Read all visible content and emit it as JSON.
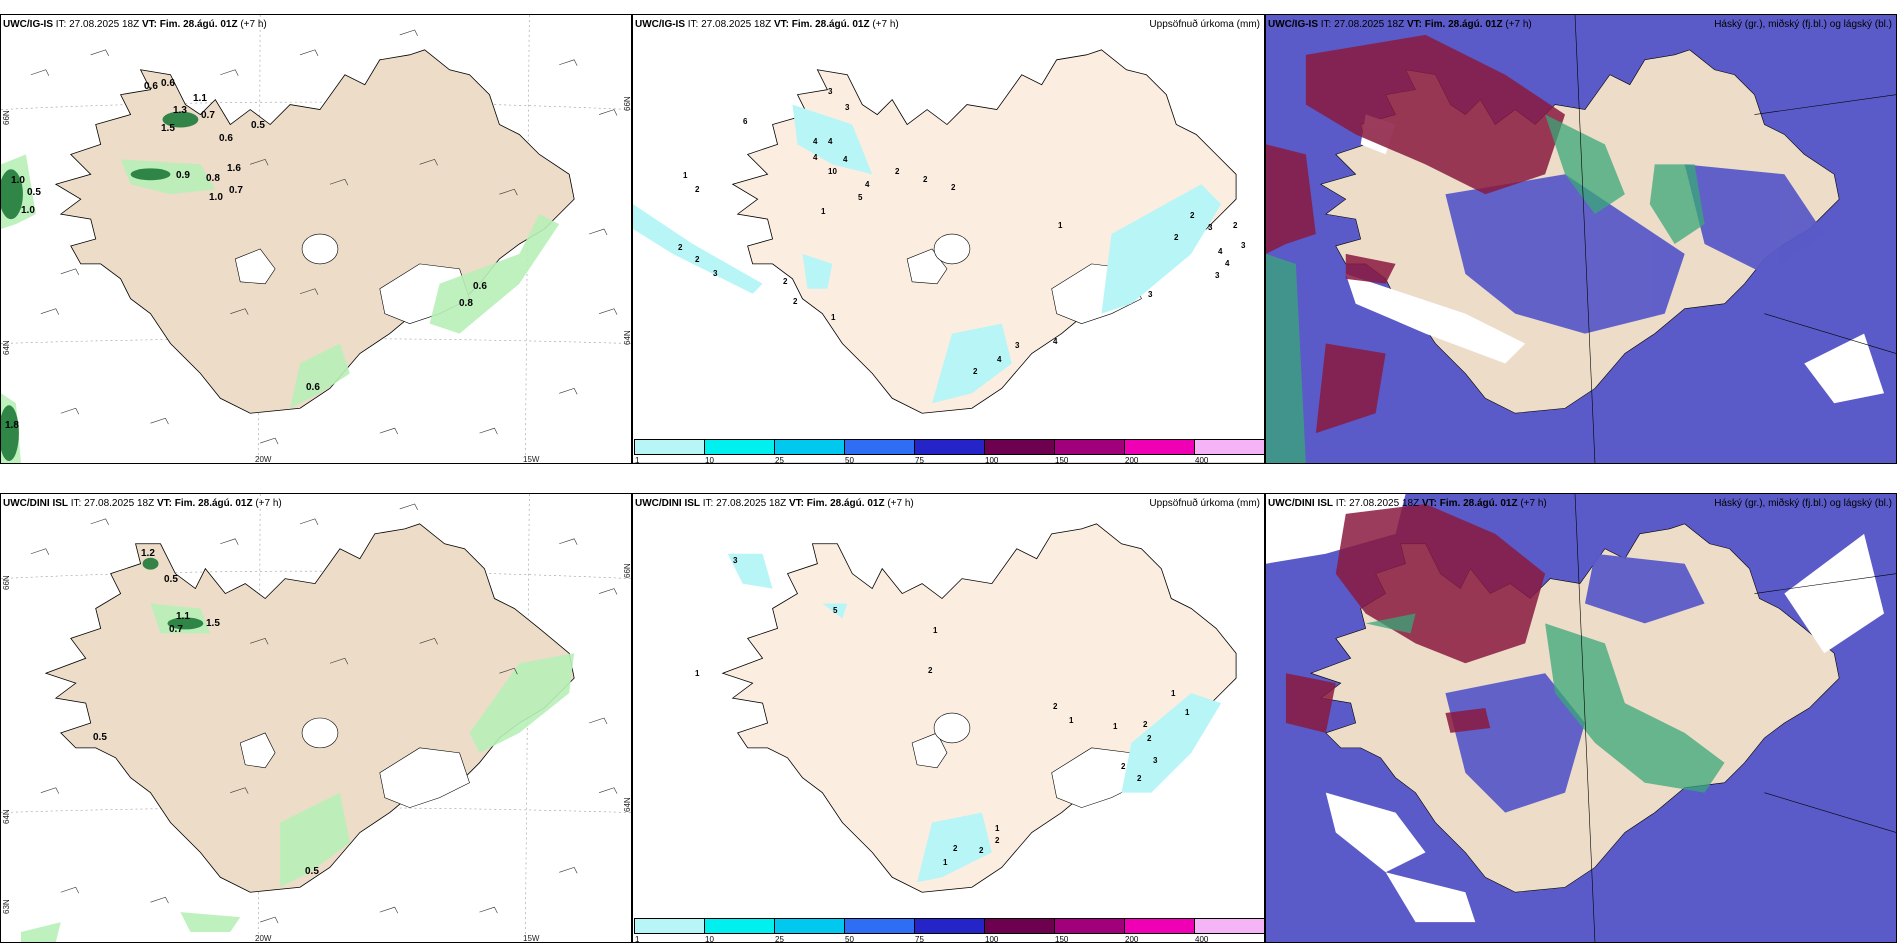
{
  "panels": [
    {
      "title_model": "UWC/IG-IS",
      "title_it": "IT: 27.08.2025 18Z",
      "title_vt": "VT: Fim. 28.ágú. 01Z",
      "title_lead": "(+7 h)",
      "right_title": ""
    },
    {
      "title_model": "UWC/IG-IS",
      "title_it": "IT: 27.08.2025 18Z",
      "title_vt": "VT: Fim. 28.ágú. 01Z",
      "title_lead": "(+7 h)",
      "right_title": "Uppsöfnuð úrkoma (mm)"
    },
    {
      "title_model": "UWC/IG-IS",
      "title_it": "IT: 27.08.2025 18Z",
      "title_vt": "VT: Fim. 28.ágú. 01Z",
      "title_lead": "(+7 h)",
      "right_title": "Háský (gr.), miðský (fj.bl.) og lágský (bl.)"
    },
    {
      "title_model": "UWC/DINI ISL",
      "title_it": "IT: 27.08.2025 18Z",
      "title_vt": "VT: Fim. 28.ágú. 01Z",
      "title_lead": "(+7 h)",
      "right_title": ""
    },
    {
      "title_model": "UWC/DINI ISL",
      "title_it": "IT: 27.08.2025 18Z",
      "title_vt": "VT: Fim. 28.ágú. 01Z",
      "title_lead": "(+7 h)",
      "right_title": "Uppsöfnuð úrkoma (mm)"
    },
    {
      "title_model": "UWC/DINI ISL",
      "title_it": "IT: 27.08.2025 18Z",
      "title_vt": "VT: Fim. 28.ágú. 01Z",
      "title_lead": "(+7 h)",
      "right_title": "Háský (gr.), miðský (fj.bl.) og lágský (bl.)"
    }
  ],
  "axis": {
    "lon1": "20W",
    "lon2": "15W",
    "lat1": "66N",
    "lat2": "64N",
    "lat3": "63N"
  },
  "colorbar": {
    "ticks": [
      "1",
      "10",
      "25",
      "50",
      "75",
      "100",
      "150",
      "200",
      "400"
    ],
    "colors": [
      "#b7f5f7",
      "#00efef",
      "#00c8ee",
      "#2e6ef5",
      "#2424c8",
      "#6e0050",
      "#a0007a",
      "#f000b4",
      "#f5b4f5"
    ]
  },
  "labels": {
    "ig_wind": [
      "0.6",
      "0.6",
      "1.1",
      "1.3",
      "0.7",
      "1.5",
      "0.5",
      "0.6",
      "1.6",
      "0.9",
      "1.0",
      "0.7",
      "1.0",
      "0.5",
      "1.0",
      "0.8",
      "0.6",
      "0.8",
      "0.6",
      "1.8"
    ],
    "ig_precip": [
      "3",
      "3",
      "6",
      "1",
      "2",
      "4",
      "4",
      "4",
      "4",
      "10",
      "2",
      "4",
      "5",
      "1",
      "2",
      "2",
      "2",
      "3",
      "2",
      "1",
      "2",
      "1",
      "3",
      "1",
      "4",
      "2",
      "4",
      "2",
      "3",
      "2",
      "2",
      "3",
      "4",
      "3",
      "2",
      "3",
      "4"
    ],
    "dini_wind": [
      "1.2",
      "0.5",
      "1.1",
      "0.7",
      "1.5",
      "0.5",
      "0.5"
    ],
    "dini_precip": [
      "3",
      "5",
      "1",
      "1",
      "2",
      "2",
      "1",
      "1",
      "2",
      "2",
      "1",
      "1",
      "2",
      "3",
      "2",
      "1",
      "2",
      "2",
      "1",
      "2"
    ]
  },
  "colors": {
    "land": "#ecdcc8",
    "land2": "#fbeee0",
    "glacier": "#ffffff",
    "precip_light": "#b8f0b8",
    "precip_dark": "#1f7a3a",
    "sea_cloud": "#5a5ac8",
    "high_cloud": "#8a1a40",
    "mid_cloud": "#3aa878"
  }
}
